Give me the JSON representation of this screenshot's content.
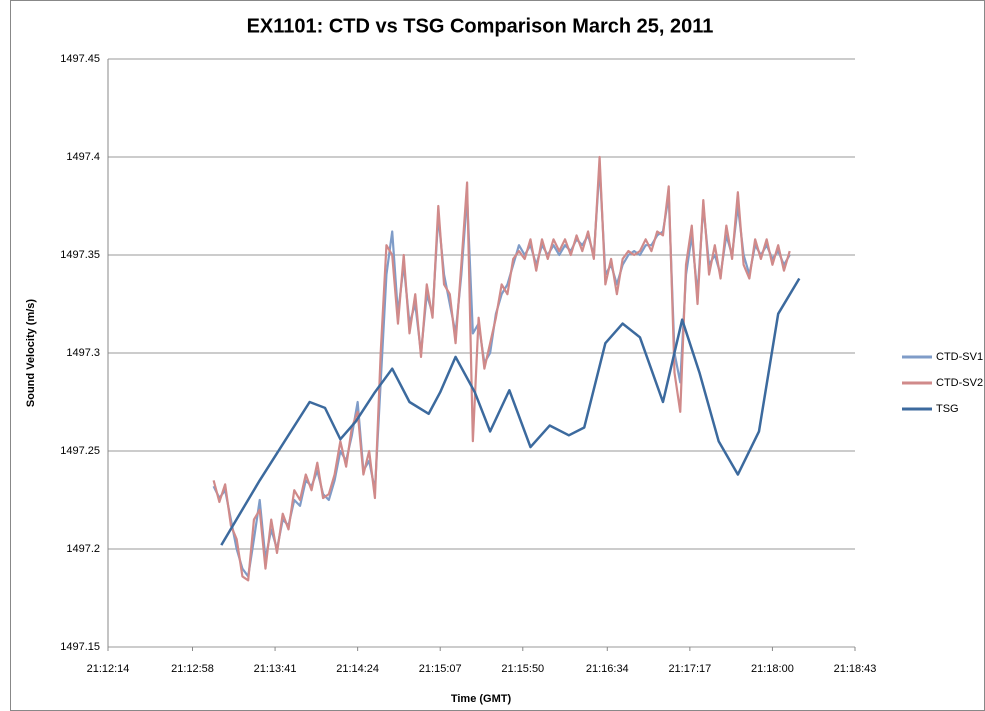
{
  "chart_data": {
    "type": "line",
    "title": "EX1101: CTD vs TSG Comparison March 25, 2011",
    "xlabel": "Time (GMT)",
    "ylabel": "Sound Velocity (m/s)",
    "xlim": [
      76334,
      76723
    ],
    "xticks": [
      {
        "value": 76334,
        "label": "21:12:14"
      },
      {
        "value": 76378,
        "label": "21:12:58"
      },
      {
        "value": 76421,
        "label": "21:13:41"
      },
      {
        "value": 76464,
        "label": "21:14:24"
      },
      {
        "value": 76507,
        "label": "21:15:07"
      },
      {
        "value": 76550,
        "label": "21:15:50"
      },
      {
        "value": 76594,
        "label": "21:16:34"
      },
      {
        "value": 76637,
        "label": "21:17:17"
      },
      {
        "value": 76680,
        "label": "21:18:00"
      },
      {
        "value": 76723,
        "label": "21:18:43"
      }
    ],
    "ylim": [
      1497.15,
      1497.45
    ],
    "yticks": [
      1497.15,
      1497.2,
      1497.25,
      1497.3,
      1497.35,
      1497.4,
      1497.45
    ],
    "grid": true,
    "legend": "right",
    "series": [
      {
        "name": "CTD-SV1",
        "color": "#7f9cc8",
        "x": [
          76389,
          76392,
          76395,
          76398,
          76401,
          76404,
          76407,
          76410,
          76413,
          76416,
          76419,
          76422,
          76425,
          76428,
          76431,
          76434,
          76437,
          76440,
          76443,
          76446,
          76449,
          76452,
          76455,
          76458,
          76461,
          76464,
          76467,
          76470,
          76473,
          76476,
          76479,
          76482,
          76485,
          76488,
          76491,
          76494,
          76497,
          76500,
          76503,
          76506,
          76509,
          76512,
          76515,
          76518,
          76521,
          76524,
          76527,
          76530,
          76533,
          76536,
          76539,
          76542,
          76545,
          76548,
          76551,
          76554,
          76557,
          76560,
          76563,
          76566,
          76569,
          76572,
          76575,
          76578,
          76581,
          76584,
          76587,
          76590,
          76593,
          76596,
          76599,
          76602,
          76605,
          76608,
          76611,
          76614,
          76617,
          76620,
          76623,
          76626,
          76629,
          76632,
          76635,
          76638,
          76641,
          76644,
          76647,
          76650,
          76653,
          76656,
          76659,
          76662,
          76665,
          76668,
          76671,
          76674,
          76677,
          76680,
          76683,
          76686,
          76689
        ],
        "values": [
          1497.232,
          1497.226,
          1497.23,
          1497.215,
          1497.2,
          1497.19,
          1497.186,
          1497.205,
          1497.225,
          1497.195,
          1497.21,
          1497.2,
          1497.215,
          1497.212,
          1497.225,
          1497.222,
          1497.235,
          1497.232,
          1497.24,
          1497.228,
          1497.225,
          1497.235,
          1497.25,
          1497.245,
          1497.258,
          1497.275,
          1497.24,
          1497.245,
          1497.23,
          1497.285,
          1497.34,
          1497.362,
          1497.32,
          1497.345,
          1497.315,
          1497.325,
          1497.3,
          1497.33,
          1497.32,
          1497.37,
          1497.34,
          1497.325,
          1497.31,
          1497.34,
          1497.38,
          1497.31,
          1497.315,
          1497.295,
          1497.3,
          1497.32,
          1497.33,
          1497.335,
          1497.345,
          1497.355,
          1497.35,
          1497.355,
          1497.345,
          1497.355,
          1497.35,
          1497.355,
          1497.35,
          1497.355,
          1497.352,
          1497.358,
          1497.355,
          1497.36,
          1497.35,
          1497.395,
          1497.34,
          1497.345,
          1497.335,
          1497.345,
          1497.35,
          1497.352,
          1497.35,
          1497.355,
          1497.355,
          1497.36,
          1497.362,
          1497.38,
          1497.3,
          1497.285,
          1497.34,
          1497.36,
          1497.33,
          1497.375,
          1497.345,
          1497.35,
          1497.34,
          1497.36,
          1497.35,
          1497.375,
          1497.35,
          1497.34,
          1497.355,
          1497.35,
          1497.355,
          1497.348,
          1497.352,
          1497.345,
          1497.35
        ]
      },
      {
        "name": "CTD-SV2",
        "color": "#d08a8a",
        "x": [
          76389,
          76392,
          76395,
          76398,
          76401,
          76404,
          76407,
          76410,
          76413,
          76416,
          76419,
          76422,
          76425,
          76428,
          76431,
          76434,
          76437,
          76440,
          76443,
          76446,
          76449,
          76452,
          76455,
          76458,
          76461,
          76464,
          76467,
          76470,
          76473,
          76476,
          76479,
          76482,
          76485,
          76488,
          76491,
          76494,
          76497,
          76500,
          76503,
          76506,
          76509,
          76512,
          76515,
          76518,
          76521,
          76524,
          76527,
          76530,
          76533,
          76536,
          76539,
          76542,
          76545,
          76548,
          76551,
          76554,
          76557,
          76560,
          76563,
          76566,
          76569,
          76572,
          76575,
          76578,
          76581,
          76584,
          76587,
          76590,
          76593,
          76596,
          76599,
          76602,
          76605,
          76608,
          76611,
          76614,
          76617,
          76620,
          76623,
          76626,
          76629,
          76632,
          76635,
          76638,
          76641,
          76644,
          76647,
          76650,
          76653,
          76656,
          76659,
          76662,
          76665,
          76668,
          76671,
          76674,
          76677,
          76680,
          76683,
          76686,
          76689
        ],
        "values": [
          1497.235,
          1497.224,
          1497.233,
          1497.212,
          1497.205,
          1497.186,
          1497.184,
          1497.215,
          1497.22,
          1497.19,
          1497.215,
          1497.198,
          1497.218,
          1497.21,
          1497.23,
          1497.225,
          1497.238,
          1497.23,
          1497.244,
          1497.226,
          1497.228,
          1497.238,
          1497.255,
          1497.242,
          1497.262,
          1497.27,
          1497.238,
          1497.25,
          1497.226,
          1497.3,
          1497.355,
          1497.35,
          1497.315,
          1497.35,
          1497.31,
          1497.33,
          1497.298,
          1497.335,
          1497.318,
          1497.375,
          1497.335,
          1497.33,
          1497.305,
          1497.345,
          1497.387,
          1497.255,
          1497.318,
          1497.292,
          1497.305,
          1497.318,
          1497.335,
          1497.33,
          1497.348,
          1497.352,
          1497.348,
          1497.358,
          1497.342,
          1497.358,
          1497.348,
          1497.358,
          1497.352,
          1497.358,
          1497.35,
          1497.36,
          1497.352,
          1497.362,
          1497.348,
          1497.4,
          1497.335,
          1497.348,
          1497.33,
          1497.348,
          1497.352,
          1497.35,
          1497.352,
          1497.358,
          1497.352,
          1497.362,
          1497.36,
          1497.385,
          1497.29,
          1497.27,
          1497.345,
          1497.365,
          1497.325,
          1497.378,
          1497.34,
          1497.355,
          1497.338,
          1497.365,
          1497.348,
          1497.382,
          1497.345,
          1497.338,
          1497.358,
          1497.348,
          1497.358,
          1497.345,
          1497.355,
          1497.342,
          1497.352
        ]
      },
      {
        "name": "TSG",
        "color": "#3c6a9e",
        "x": [
          76393,
          76413,
          76426,
          76439,
          76447,
          76455,
          76463,
          76473,
          76482,
          76491,
          76501,
          76507,
          76515,
          76525,
          76533,
          76543,
          76554,
          76564,
          76574,
          76582,
          76593,
          76602,
          76611,
          76623,
          76633,
          76642,
          76652,
          76662,
          76673,
          76683,
          76694
        ],
        "values": [
          1497.202,
          1497.235,
          1497.255,
          1497.275,
          1497.272,
          1497.256,
          1497.265,
          1497.28,
          1497.292,
          1497.275,
          1497.269,
          1497.28,
          1497.298,
          1497.28,
          1497.26,
          1497.281,
          1497.252,
          1497.263,
          1497.258,
          1497.262,
          1497.305,
          1497.315,
          1497.308,
          1497.275,
          1497.317,
          1497.29,
          1497.255,
          1497.238,
          1497.26,
          1497.32,
          1497.338
        ]
      }
    ]
  }
}
